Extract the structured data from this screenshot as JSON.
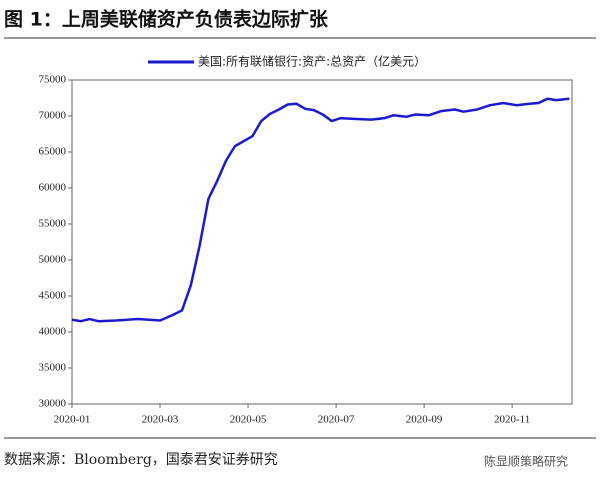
{
  "chart_data": {
    "type": "line",
    "title": "图 1：上周美联储资产负债表边际扩张",
    "source": "数据来源：Bloomberg，国泰君安证券研究",
    "watermark": "陈显顺策略研究",
    "x": [
      0,
      0.2,
      0.4,
      0.6,
      1.0,
      1.5,
      2.0,
      2.3,
      2.5,
      2.7,
      2.9,
      3.1,
      3.3,
      3.5,
      3.7,
      3.9,
      4.1,
      4.3,
      4.5,
      4.7,
      4.9,
      5.1,
      5.3,
      5.5,
      5.7,
      5.9,
      6.1,
      6.4,
      6.8,
      7.1,
      7.3,
      7.6,
      7.8,
      8.1,
      8.4,
      8.7,
      8.9,
      9.2,
      9.5,
      9.8,
      10.1,
      10.4,
      10.6,
      10.8,
      11.0,
      11.3
    ],
    "series": [
      {
        "name": "美国:所有联储银行:资产:总资产（亿美元）",
        "color": "#1a1ad0",
        "values": [
          41700,
          41500,
          41800,
          41500,
          41600,
          41800,
          41600,
          42400,
          43000,
          46500,
          52000,
          58500,
          61000,
          63800,
          65800,
          66500,
          67200,
          69300,
          70300,
          70900,
          71600,
          71700,
          71000,
          70800,
          70200,
          69300,
          69700,
          69600,
          69500,
          69700,
          70100,
          69900,
          70200,
          70100,
          70700,
          70900,
          70600,
          70900,
          71500,
          71800,
          71500,
          71700,
          71800,
          72400,
          72200,
          72400
        ]
      }
    ],
    "xlim": [
      0,
      11.36
    ],
    "xticks": [
      {
        "value": 0,
        "label": "2020-01"
      },
      {
        "value": 2,
        "label": "2020-03"
      },
      {
        "value": 4,
        "label": "2020-05"
      },
      {
        "value": 6,
        "label": "2020-07"
      },
      {
        "value": 8,
        "label": "2020-09"
      },
      {
        "value": 10,
        "label": "2020-11"
      }
    ],
    "ylim": [
      30000,
      75000
    ],
    "yticks": [
      30000,
      35000,
      40000,
      45000,
      50000,
      55000,
      60000,
      65000,
      70000,
      75000
    ]
  }
}
